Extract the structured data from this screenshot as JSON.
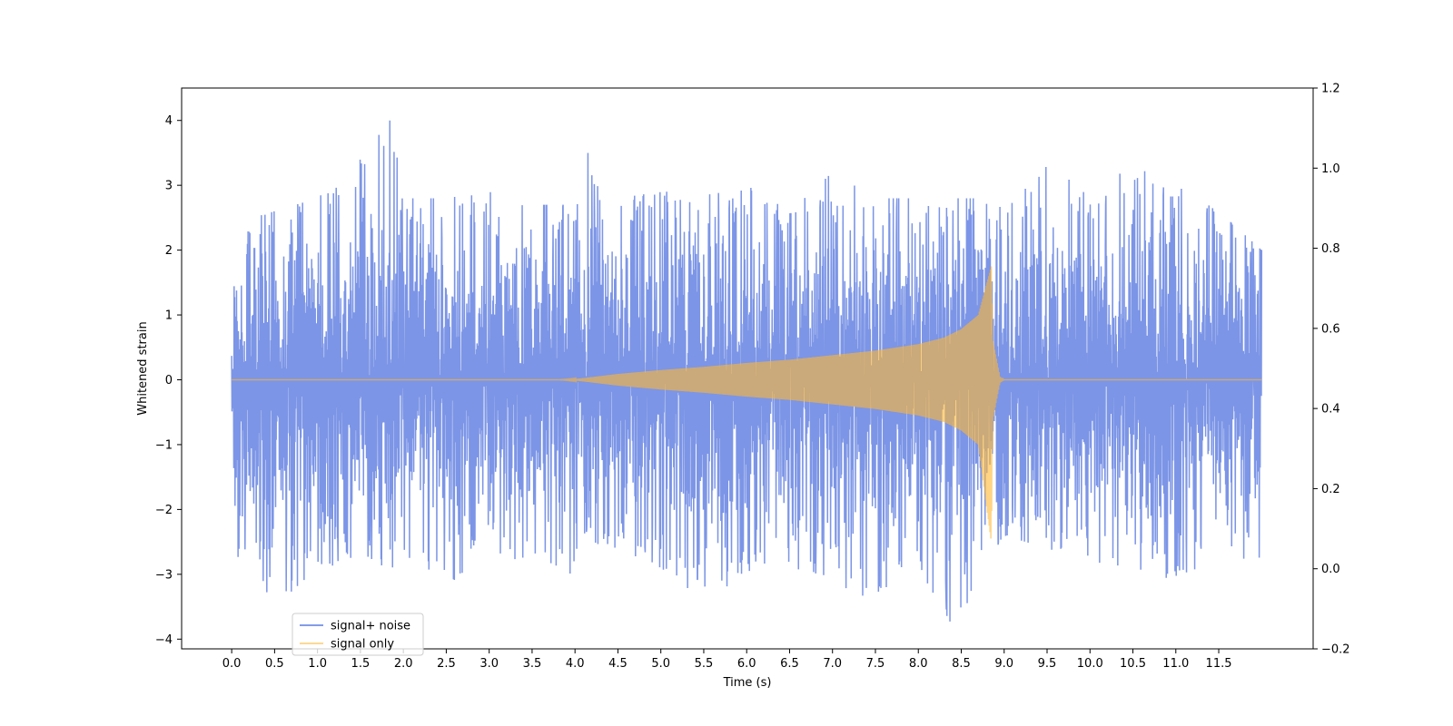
{
  "chart_data": {
    "type": "line",
    "title": "",
    "xlabel": "Time (s)",
    "ylabel": "Whitened strain",
    "xlim": [
      -0.5833,
      12.6
    ],
    "ylim": [
      -4.15,
      4.5
    ],
    "ylim_right": [
      -0.2,
      1.2
    ],
    "x_ticks": [
      0.0,
      0.5,
      1.0,
      1.5,
      2.0,
      2.5,
      3.0,
      3.5,
      4.0,
      4.5,
      5.0,
      5.5,
      6.0,
      6.5,
      7.0,
      7.5,
      8.0,
      8.5,
      9.0,
      9.5,
      10.0,
      10.5,
      11.0,
      11.5
    ],
    "x_tick_labels": [
      "0.0",
      "0.5",
      "1.0",
      "1.5",
      "2.0",
      "2.5",
      "3.0",
      "3.5",
      "4.0",
      "4.5",
      "5.0",
      "5.5",
      "6.0",
      "6.5",
      "7.0",
      "7.5",
      "8.0",
      "8.5",
      "9.0",
      "9.5",
      "10.0",
      "10.5",
      "11.0",
      "11.5"
    ],
    "y_ticks": [
      -4,
      -3,
      -2,
      -1,
      0,
      1,
      2,
      3,
      4
    ],
    "y_tick_labels": [
      "−4",
      "−3",
      "−2",
      "−1",
      "0",
      "1",
      "2",
      "3",
      "4"
    ],
    "y_right_ticks": [
      -0.2,
      0.0,
      0.2,
      0.4,
      0.6,
      0.8,
      1.0,
      1.2
    ],
    "y_right_tick_labels": [
      "−0.2",
      "0.0",
      "0.2",
      "0.4",
      "0.6",
      "0.8",
      "1.0",
      "1.2"
    ],
    "legend": {
      "placement": "lower-left"
    },
    "grid": false,
    "series": [
      {
        "name": "signal+ noise",
        "color": "#5b7be0",
        "envelope": {
          "x": [
            0.0,
            0.5,
            1.0,
            1.5,
            1.9,
            2.0,
            2.5,
            3.0,
            3.5,
            4.0,
            4.15,
            4.5,
            5.0,
            5.5,
            6.0,
            6.5,
            7.0,
            7.5,
            8.0,
            8.4,
            8.5,
            8.85,
            9.0,
            9.5,
            10.0,
            10.5,
            11.0,
            11.5,
            12.0
          ],
          "upper": [
            2.4,
            2.6,
            2.8,
            3.4,
            4.1,
            2.8,
            2.8,
            2.9,
            2.7,
            2.7,
            3.5,
            2.8,
            2.9,
            2.9,
            3.0,
            2.6,
            3.2,
            2.8,
            2.8,
            2.8,
            2.8,
            2.8,
            2.6,
            3.3,
            2.9,
            3.3,
            3.0,
            2.6,
            2.0
          ],
          "lower": [
            -2.6,
            -3.5,
            -2.9,
            -2.8,
            -2.9,
            -2.7,
            -3.2,
            -2.6,
            -2.9,
            -3.0,
            -2.5,
            -2.6,
            -2.9,
            -3.4,
            -3.1,
            -2.8,
            -3.4,
            -3.3,
            -2.9,
            -3.8,
            -3.6,
            -2.9,
            -2.4,
            -2.6,
            -2.8,
            -2.9,
            -3.1,
            -2.7,
            -2.8
          ]
        }
      },
      {
        "name": "signal only",
        "color": "#ffb732",
        "envelope": {
          "x": [
            0.0,
            3.8,
            4.0,
            4.5,
            5.0,
            5.5,
            6.0,
            6.5,
            7.0,
            7.5,
            8.0,
            8.3,
            8.5,
            8.7,
            8.85,
            8.87,
            8.95,
            9.0,
            12.0
          ],
          "upper": [
            0.0,
            0.0,
            0.01,
            0.09,
            0.15,
            0.2,
            0.26,
            0.31,
            0.38,
            0.45,
            0.55,
            0.65,
            0.78,
            1.0,
            1.75,
            0.6,
            0.05,
            0.0,
            0.0
          ],
          "lower": [
            0.0,
            0.0,
            -0.01,
            -0.09,
            -0.15,
            -0.2,
            -0.26,
            -0.31,
            -0.38,
            -0.45,
            -0.55,
            -0.65,
            -0.78,
            -1.0,
            -2.5,
            -0.6,
            -0.05,
            0.0,
            0.0
          ]
        }
      }
    ]
  }
}
